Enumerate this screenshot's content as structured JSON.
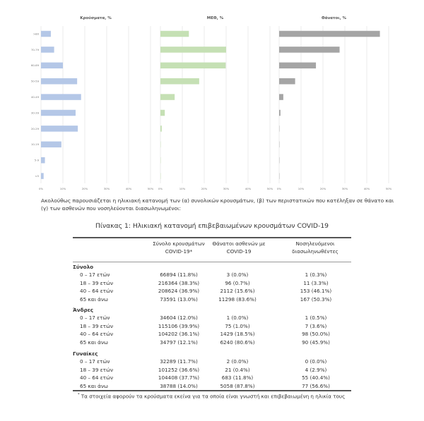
{
  "chart_data": [
    {
      "type": "bar",
      "orientation": "horizontal",
      "title": "Κρούσματα, %",
      "categories": [
        ">80",
        "70-79",
        "60-69",
        "50-59",
        "40-49",
        "30-39",
        "20-29",
        "10-19",
        "5-9",
        "<5"
      ],
      "values": [
        4.5,
        6.0,
        10.0,
        16.5,
        18.3,
        15.8,
        16.8,
        9.3,
        1.8,
        1.2
      ],
      "xlim": [
        0,
        50
      ],
      "xticks": [
        "0%",
        "10%",
        "20%",
        "30%",
        "40%",
        "50%"
      ],
      "grid": true,
      "color": "#b4c7e7"
    },
    {
      "type": "bar",
      "orientation": "horizontal",
      "title": "ΜΕΘ, %",
      "categories": [
        ">80",
        "70-79",
        "60-69",
        "50-59",
        "40-49",
        "30-39",
        "20-29",
        "10-19",
        "5-9",
        "<5"
      ],
      "values": [
        13.0,
        30.0,
        29.8,
        17.7,
        6.5,
        2.0,
        0.6,
        0.1,
        0,
        0
      ],
      "xlim": [
        0,
        50
      ],
      "xticks": [
        "0%",
        "10%",
        "20%",
        "30%",
        "40%",
        "50%"
      ],
      "grid": true,
      "color": "#c5e0b4"
    },
    {
      "type": "bar",
      "orientation": "horizontal",
      "title": "Θάνατοι, %",
      "categories": [
        ">80",
        "70-79",
        "60-69",
        "50-59",
        "40-49",
        "30-39",
        "20-29",
        "10-19",
        "5-9",
        "<5"
      ],
      "values": [
        46.0,
        27.6,
        16.8,
        7.3,
        1.9,
        0.6,
        0.1,
        0.05,
        0,
        0
      ],
      "xlim": [
        0,
        50
      ],
      "xticks": [
        "0%",
        "10%",
        "20%",
        "30%",
        "40%",
        "50%"
      ],
      "grid": true,
      "color": "#a5a5a5"
    }
  ],
  "paragraph": "Ακολούθως παρουσιάζεται η ηλικιακή κατανομή των (α) συνολικών κρουσμάτων, (β) των περιστατικών που κατέληξαν σε θάνατο και (γ) των ασθενών που νοσηλεύονται διασωληνωμένοι:",
  "table": {
    "title": "Πίνακας 1: Ηλικιακή κατανομή επιβεβαιωμένων κρουσμάτων COVID-19",
    "headers": [
      [
        "Σύνολο κρουσμάτων",
        "COVID-19*"
      ],
      [
        "Θάνατοι ασθενών με",
        "COVID-19"
      ],
      [
        "Νοσηλευόμενοι",
        "διασωληνωθέντες"
      ]
    ],
    "groups": [
      {
        "name": "Σύνολο",
        "rows": [
          [
            "0 – 17 ετών",
            "66894 (11.8%)",
            "3 (0.0%)",
            "1 (0.3%)"
          ],
          [
            "18 – 39 ετών",
            "216364 (38.3%)",
            "96 (0.7%)",
            "11 (3.3%)"
          ],
          [
            "40 – 64 ετών",
            "208624 (36.9%)",
            "2112 (15.6%)",
            "153 (46.1%)"
          ],
          [
            "65 και άνω",
            "73591 (13.0%)",
            "11298 (83.6%)",
            "167 (50.3%)"
          ]
        ]
      },
      {
        "name": "Άνδρες",
        "rows": [
          [
            "0 – 17 ετών",
            "34604 (12.0%)",
            "1 (0.0%)",
            "1 (0.5%)"
          ],
          [
            "18 – 39 ετών",
            "115106 (39.9%)",
            "75 (1.0%)",
            "7 (3.6%)"
          ],
          [
            "40 – 64 ετών",
            "104202 (36.1%)",
            "1429 (18.5%)",
            "98 (50.0%)"
          ],
          [
            "65 και άνω",
            "34797 (12.1%)",
            "6240 (80.6%)",
            "90 (45.9%)"
          ]
        ]
      },
      {
        "name": "Γυναίκες",
        "rows": [
          [
            "0 – 17 ετών",
            "32289 (11.7%)",
            "2 (0.0%)",
            "0 (0.0%)"
          ],
          [
            "18 – 39 ετών",
            "101252 (36.6%)",
            "21 (0.4%)",
            "4 (2.9%)"
          ],
          [
            "40 – 64 ετών",
            "104408 (37.7%)",
            "683 (11.8%)",
            "55 (40.4%)"
          ],
          [
            "65 και άνω",
            "38788 (14.0%)",
            "5058 (87.8%)",
            "77 (56.6%)"
          ]
        ]
      }
    ],
    "footnote_mark": "*",
    "footnote": "Τα στοιχεία αφορούν τα κρούσματα εκείνα για τα οποία είναι γνωστή και επιβεβαιωμένη η ηλικία τους"
  }
}
